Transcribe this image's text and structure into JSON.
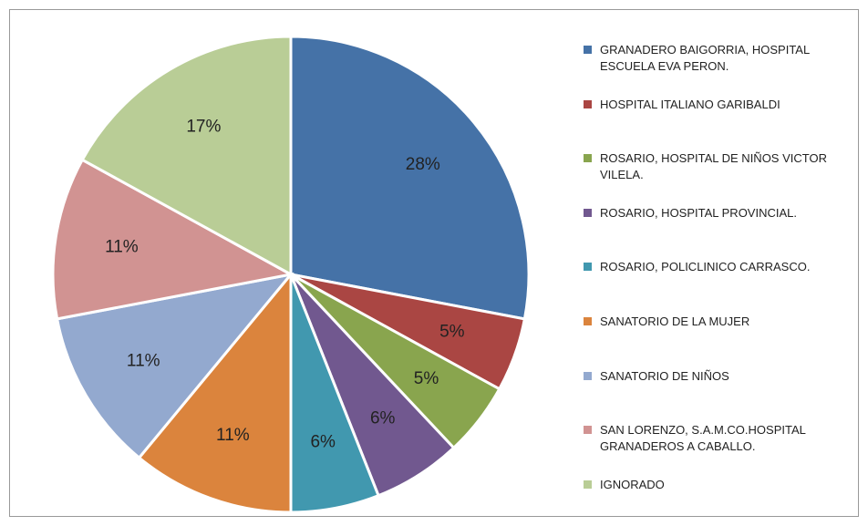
{
  "chart_data": {
    "type": "pie",
    "categories": [
      "GRANADERO BAIGORRIA, HOSPITAL ESCUELA  EVA PERON.",
      "HOSPITAL ITALIANO GARIBALDI",
      "ROSARIO, HOSPITAL DE NIÑOS VICTOR VILELA.",
      "ROSARIO, HOSPITAL PROVINCIAL.",
      "ROSARIO, POLICLINICO CARRASCO.",
      "SANATORIO DE LA MUJER",
      "SANATORIO DE NIÑOS",
      "SAN LORENZO, S.A.M.CO.HOSPITAL GRANADEROS A CABALLO.",
      "IGNORADO"
    ],
    "values": [
      28,
      5,
      5,
      6,
      6,
      11,
      11,
      11,
      17
    ],
    "value_labels": [
      "28%",
      "5%",
      "5%",
      "6%",
      "6%",
      "11%",
      "11%",
      "11%",
      "17%"
    ],
    "colors": [
      "#4572a7",
      "#aa4643",
      "#89a54e",
      "#71588f",
      "#4198af",
      "#db843d",
      "#93a9cf",
      "#d19392",
      "#b9cd96"
    ],
    "legend": "right"
  }
}
